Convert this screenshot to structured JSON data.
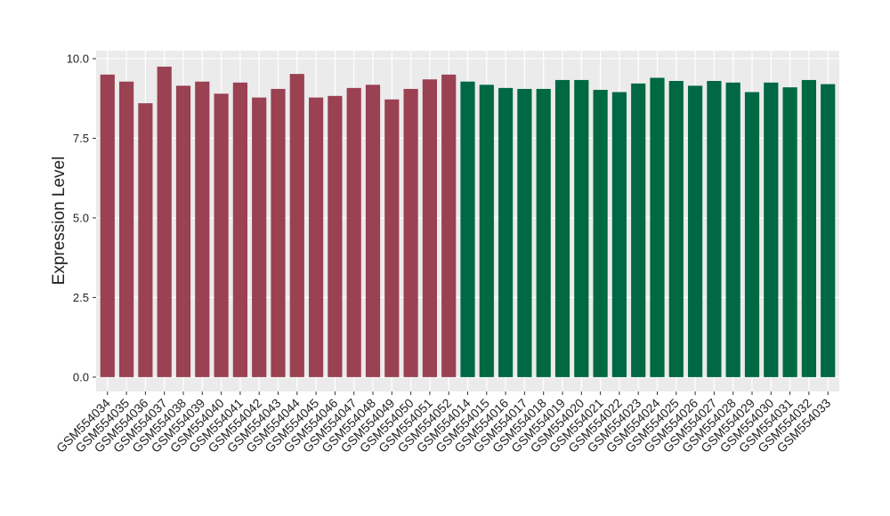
{
  "chart_data": {
    "type": "bar",
    "ylabel": "Expression Level",
    "categories": [
      "GSM554034",
      "GSM554035",
      "GSM554036",
      "GSM554037",
      "GSM554038",
      "GSM554039",
      "GSM554040",
      "GSM554041",
      "GSM554042",
      "GSM554043",
      "GSM554044",
      "GSM554045",
      "GSM554046",
      "GSM554047",
      "GSM554048",
      "GSM554049",
      "GSM554050",
      "GSM554051",
      "GSM554052",
      "GSM554014",
      "GSM554015",
      "GSM554016",
      "GSM554017",
      "GSM554018",
      "GSM554019",
      "GSM554020",
      "GSM554021",
      "GSM554022",
      "GSM554023",
      "GSM554024",
      "GSM554025",
      "GSM554026",
      "GSM554027",
      "GSM554028",
      "GSM554029",
      "GSM554030",
      "GSM554031",
      "GSM554032",
      "GSM554033"
    ],
    "values": [
      9.5,
      9.28,
      8.6,
      9.75,
      9.15,
      9.28,
      8.9,
      9.25,
      8.78,
      9.05,
      9.52,
      8.78,
      8.83,
      9.08,
      9.18,
      8.72,
      9.05,
      9.35,
      9.5,
      9.28,
      9.18,
      9.08,
      9.05,
      9.05,
      9.33,
      9.33,
      9.02,
      8.95,
      9.22,
      9.4,
      9.3,
      9.15,
      9.3,
      9.25,
      8.95,
      9.25,
      9.1,
      9.33,
      9.2
    ],
    "colors": [
      "#9a4152",
      "#9a4152",
      "#9a4152",
      "#9a4152",
      "#9a4152",
      "#9a4152",
      "#9a4152",
      "#9a4152",
      "#9a4152",
      "#9a4152",
      "#9a4152",
      "#9a4152",
      "#9a4152",
      "#9a4152",
      "#9a4152",
      "#9a4152",
      "#9a4152",
      "#9a4152",
      "#9a4152",
      "#006843",
      "#006843",
      "#006843",
      "#006843",
      "#006843",
      "#006843",
      "#006843",
      "#006843",
      "#006843",
      "#006843",
      "#006843",
      "#006843",
      "#006843",
      "#006843",
      "#006843",
      "#006843",
      "#006843",
      "#006843",
      "#006843",
      "#006843"
    ],
    "ylim": [
      -0.45,
      10.25
    ],
    "yticks": [
      {
        "value": 0,
        "label": "0.0"
      },
      {
        "value": 2.5,
        "label": "2.5"
      },
      {
        "value": 5,
        "label": "5.0"
      },
      {
        "value": 7.5,
        "label": "7.5"
      },
      {
        "value": 10,
        "label": "10.0"
      }
    ],
    "grid": true
  }
}
